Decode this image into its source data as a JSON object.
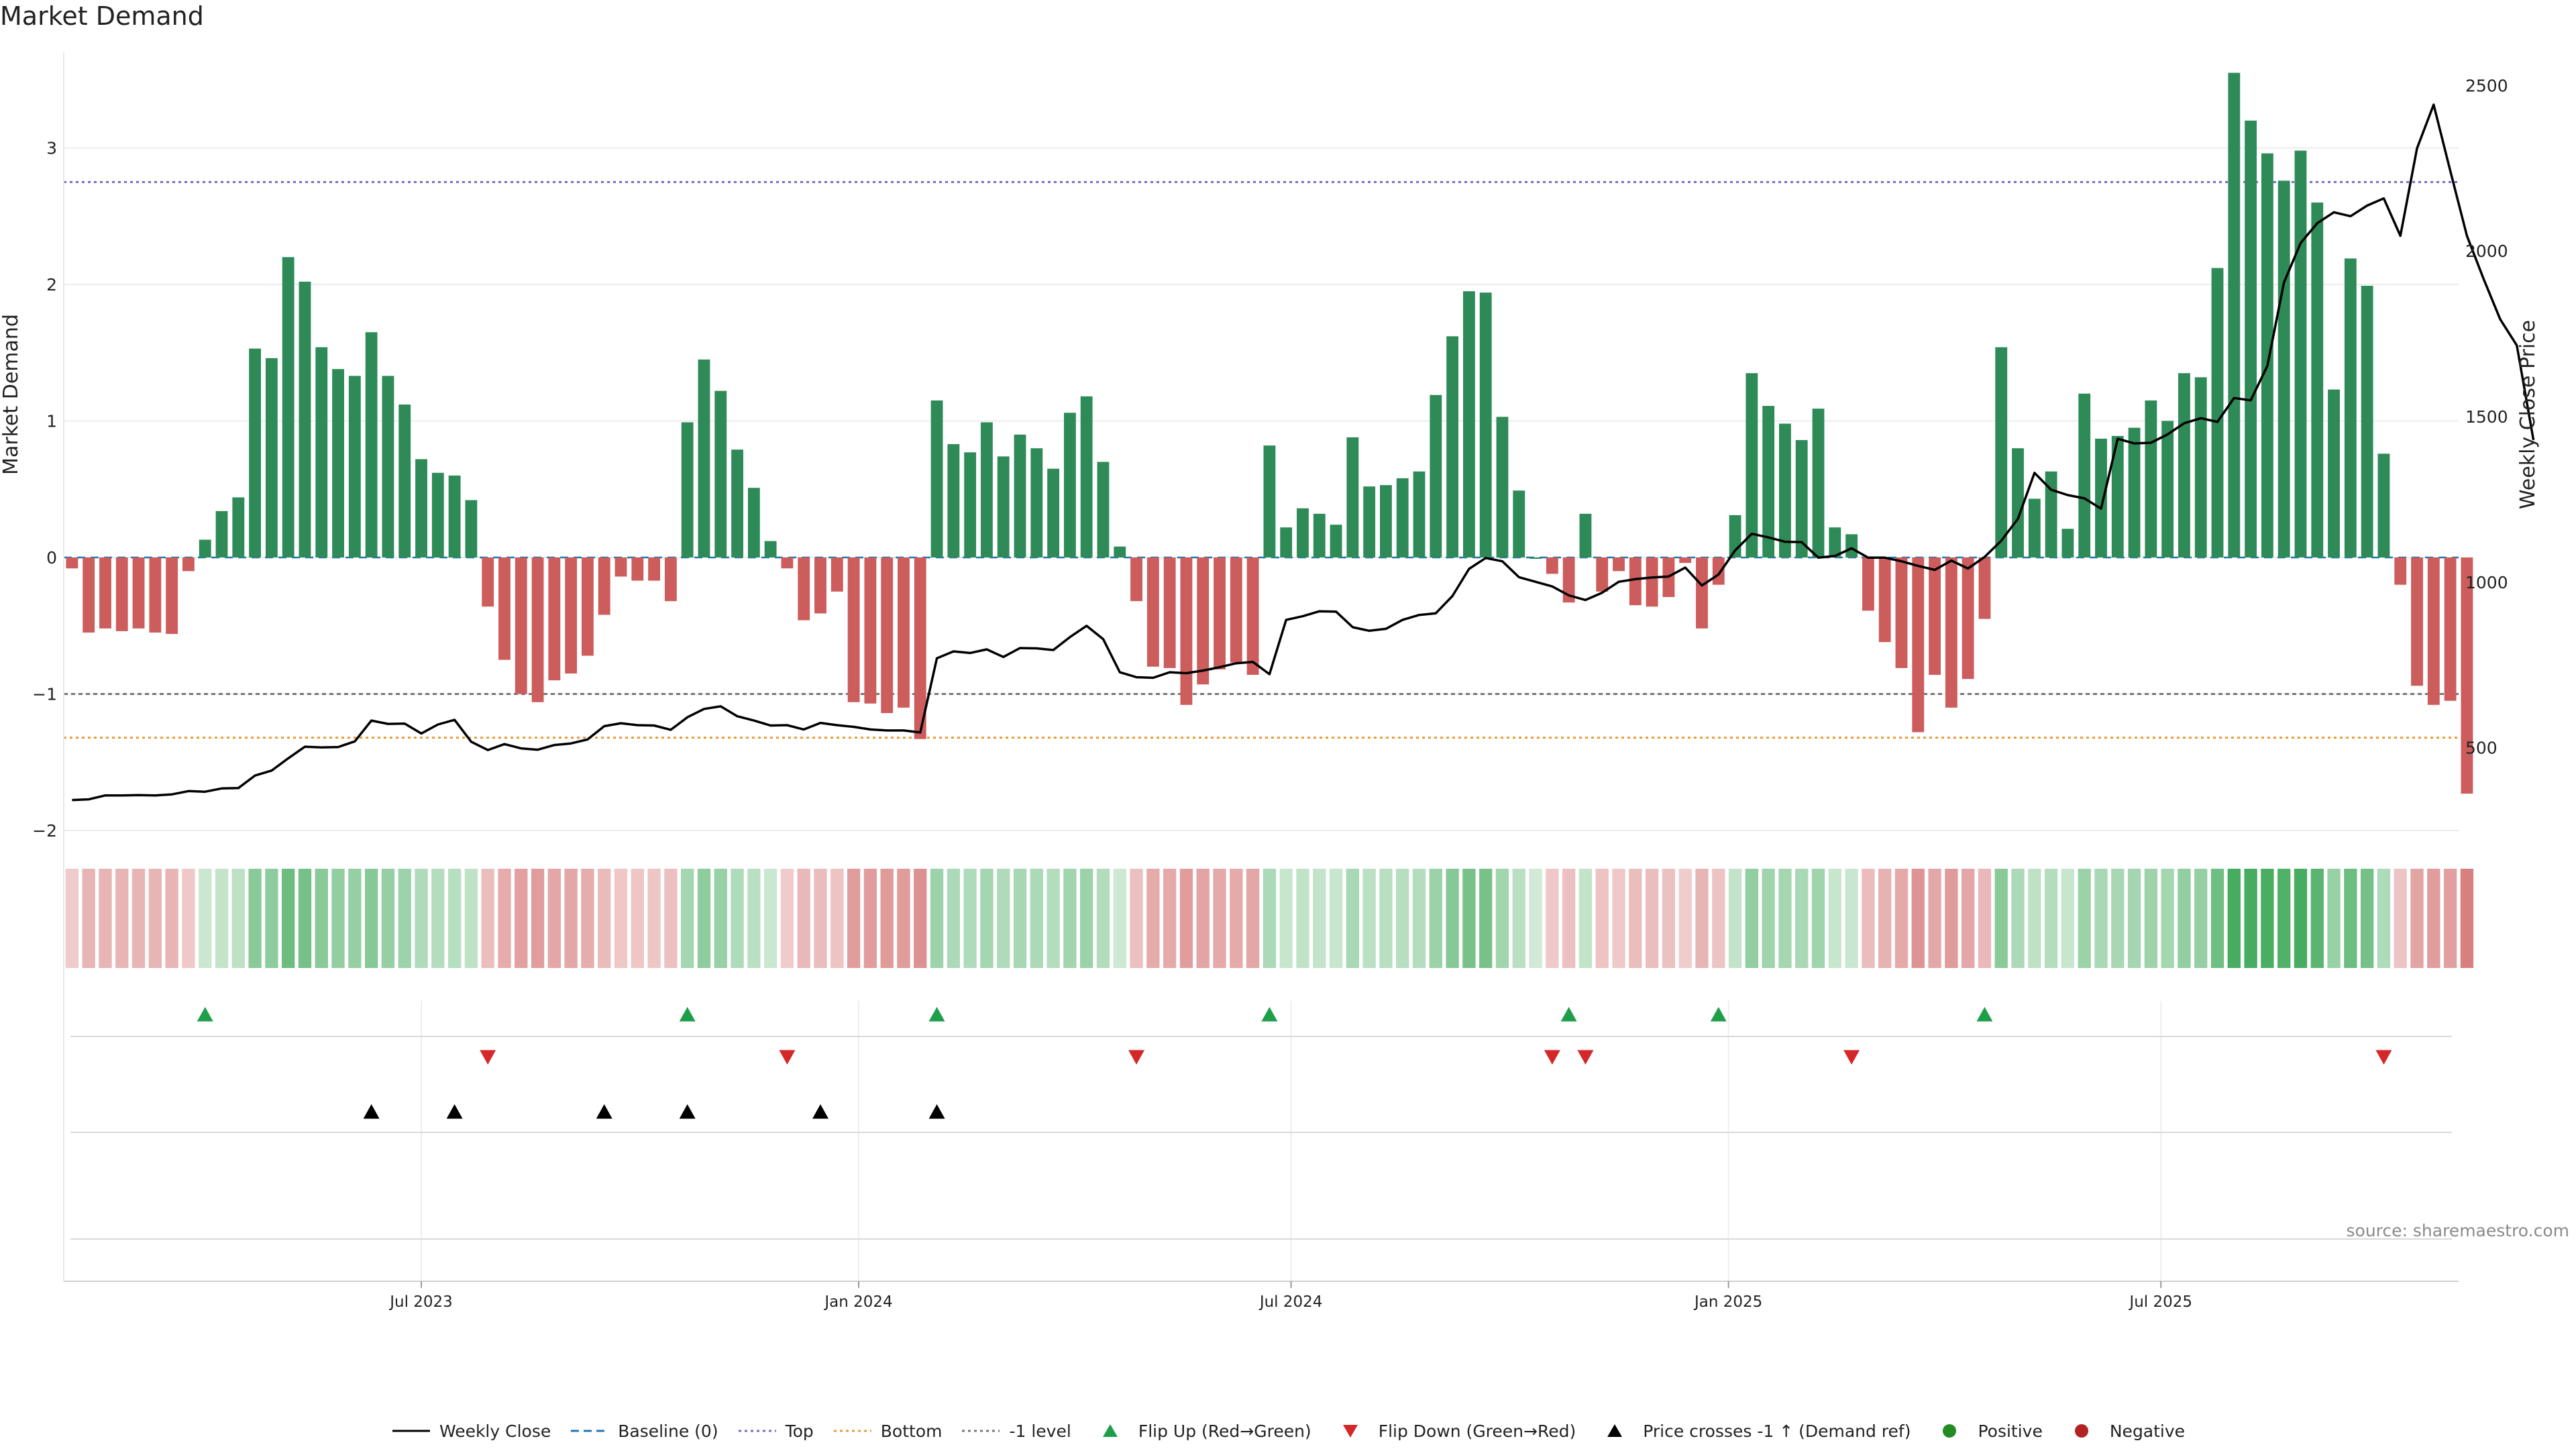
{
  "title": "Market Demand",
  "source": "source: sharemaestro.com",
  "colors": {
    "positive": "#2e8b57",
    "negative": "#cd5c5c",
    "price": "#000000",
    "top": "#7b68c8",
    "bottom": "#e69b3a",
    "minus1": "#777777",
    "baseline": "#1f77b4",
    "flip_up": "#1f9e4a",
    "flip_down": "#d62728",
    "cross": "#000000",
    "pos_dot": "#228b22",
    "neg_dot": "#b22222"
  },
  "chart_data": {
    "type": "bar",
    "title": "Market Demand",
    "ylabel_left": "Market Demand",
    "ylabel_right": "Weekly Close Price",
    "ylim_left": [
      -2,
      3.7
    ],
    "ylim_right": [
      250,
      2600
    ],
    "left_ticks": [
      -2,
      -1,
      0,
      1,
      2,
      3
    ],
    "left_tick_labels": [
      "−2",
      "−1",
      "0",
      "1",
      "2",
      "3"
    ],
    "right_ticks": [
      500,
      1000,
      1500,
      2000,
      2500
    ],
    "right_tick_labels": [
      "500",
      "1000",
      "1500",
      "2000",
      "2500"
    ],
    "reference_lines": {
      "top": 2.75,
      "bottom": -1.32,
      "minus1": -1.0,
      "baseline": 0
    },
    "weeks_count": 144,
    "x_ticks": [
      {
        "week": 21,
        "label": "Jul 2023"
      },
      {
        "week": 47.3,
        "label": "Jan 2024"
      },
      {
        "week": 73.3,
        "label": "Jul 2024"
      },
      {
        "week": 99.6,
        "label": "Jan 2025"
      },
      {
        "week": 125.6,
        "label": "Jul 2025"
      }
    ],
    "demand": [
      -0.08,
      -0.55,
      -0.52,
      -0.54,
      -0.52,
      -0.55,
      -0.56,
      -0.1,
      0.13,
      0.34,
      0.44,
      1.53,
      1.46,
      2.2,
      2.02,
      1.54,
      1.38,
      1.33,
      1.65,
      1.33,
      1.12,
      0.72,
      0.62,
      0.6,
      0.42,
      -0.36,
      -0.75,
      -1.0,
      -1.06,
      -0.9,
      -0.85,
      -0.72,
      -0.42,
      -0.14,
      -0.17,
      -0.17,
      -0.32,
      0.99,
      1.45,
      1.22,
      0.79,
      0.51,
      0.12,
      -0.08,
      -0.46,
      -0.41,
      -0.25,
      -1.06,
      -1.07,
      -1.14,
      -1.1,
      -1.33,
      1.15,
      0.83,
      0.77,
      0.99,
      0.74,
      0.9,
      0.8,
      0.65,
      1.06,
      1.18,
      0.7,
      0.08,
      -0.32,
      -0.8,
      -0.81,
      -1.08,
      -0.93,
      -0.82,
      -0.77,
      -0.86,
      0.82,
      0.22,
      0.36,
      0.32,
      0.24,
      0.88,
      0.52,
      0.53,
      0.58,
      0.63,
      1.19,
      1.62,
      1.95,
      1.94,
      1.03,
      0.49,
      0.0,
      -0.12,
      -0.33,
      0.32,
      -0.25,
      -0.1,
      -0.35,
      -0.36,
      -0.29,
      -0.04,
      -0.52,
      -0.2,
      0.31,
      1.35,
      1.11,
      0.98,
      0.86,
      1.09,
      0.22,
      0.17,
      -0.39,
      -0.62,
      -0.81,
      -1.28,
      -0.86,
      -1.1,
      -0.89,
      -0.45,
      1.54,
      0.8,
      0.43,
      0.63,
      0.21,
      1.2,
      0.87,
      0.89,
      0.95,
      1.15,
      1.0,
      1.35,
      1.32,
      2.12,
      3.55,
      3.2,
      2.96,
      2.76,
      2.98,
      2.6,
      1.23,
      2.19,
      1.99,
      0.76,
      -0.2,
      -0.94,
      -1.08,
      -1.05,
      -1.73
    ],
    "price": [
      342,
      344,
      356,
      356,
      357,
      356,
      359,
      369,
      367,
      377,
      378,
      416,
      431,
      468,
      503,
      501,
      502,
      519,
      582,
      572,
      573,
      543,
      570,
      584,
      518,
      493,
      511,
      498,
      494,
      508,
      513,
      525,
      565,
      574,
      568,
      567,
      554,
      592,
      617,
      625,
      595,
      582,
      567,
      568,
      555,
      575,
      568,
      563,
      555,
      552,
      552,
      546,
      770,
      791,
      786,
      797,
      774,
      801,
      800,
      795,
      834,
      868,
      828,
      728,
      713,
      711,
      728,
      725,
      733,
      743,
      755,
      759,
      722,
      886,
      897,
      912,
      911,
      864,
      853,
      859,
      886,
      901,
      906,
      958,
      1040,
      1073,
      1063,
      1015,
      1001,
      987,
      960,
      946,
      968,
      1001,
      1009,
      1014,
      1017,
      1044,
      990,
      1023,
      1096,
      1146,
      1135,
      1122,
      1121,
      1074,
      1079,
      1102,
      1074,
      1074,
      1063,
      1049,
      1037,
      1065,
      1041,
      1076,
      1125,
      1191,
      1330,
      1279,
      1263,
      1253,
      1222,
      1433,
      1419,
      1421,
      1446,
      1480,
      1495,
      1484,
      1556,
      1549,
      1653,
      1905,
      2024,
      2084,
      2117,
      2105,
      2137,
      2159,
      2046,
      2310,
      2442,
      2242,
      2046,
      1916,
      1794,
      1715,
      1429
    ],
    "flip_up_weeks": [
      8,
      37,
      52,
      72,
      90,
      99,
      115
    ],
    "flip_down_weeks": [
      25,
      43,
      64,
      89,
      91,
      107,
      139
    ],
    "price_cross_weeks": [
      18,
      23,
      32,
      37,
      45,
      52
    ]
  },
  "legend": [
    {
      "key": "weekly_close",
      "label": "Weekly Close",
      "marker": "solid-line"
    },
    {
      "key": "baseline",
      "label": "Baseline (0)",
      "marker": "dashed-line"
    },
    {
      "key": "top",
      "label": "Top",
      "marker": "dotted-line"
    },
    {
      "key": "bottom",
      "label": "Bottom",
      "marker": "dotted-line"
    },
    {
      "key": "minus1",
      "label": "-1 level",
      "marker": "dotted-line"
    },
    {
      "key": "flip_up",
      "label": "Flip Up (Red→Green)",
      "marker": "triangle-up"
    },
    {
      "key": "flip_down",
      "label": "Flip Down (Green→Red)",
      "marker": "triangle-down"
    },
    {
      "key": "cross",
      "label": "Price crosses -1 ↑ (Demand ref)",
      "marker": "triangle-up"
    },
    {
      "key": "pos_dot",
      "label": "Positive",
      "marker": "circle"
    },
    {
      "key": "neg_dot",
      "label": "Negative",
      "marker": "circle"
    }
  ]
}
